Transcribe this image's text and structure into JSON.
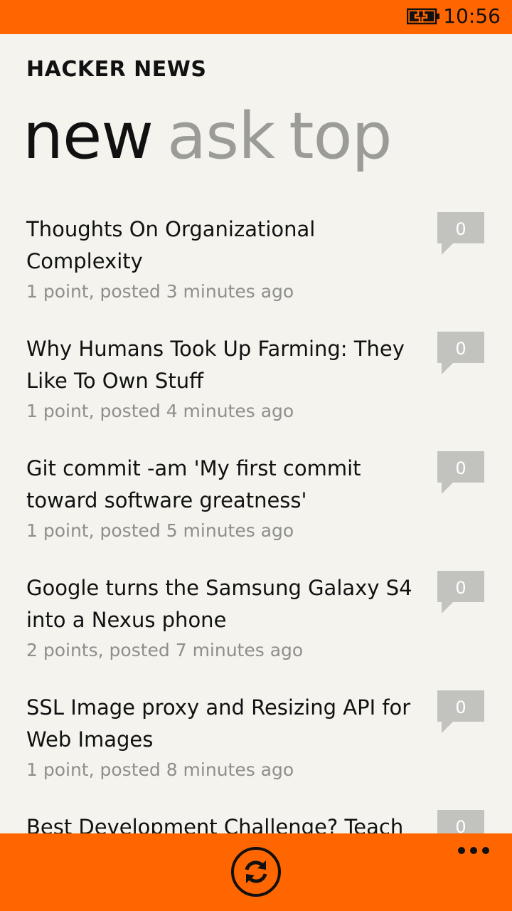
{
  "status_bar": {
    "time": "10:56",
    "battery_icon": "battery-charging-icon"
  },
  "app": {
    "title": "HACKER NEWS"
  },
  "pivot": {
    "tabs": [
      "new",
      "ask",
      "top"
    ],
    "active_tab": "new"
  },
  "stories": [
    {
      "title": "Thoughts On Organizational Complexity",
      "meta": "1 point, posted 3 minutes ago",
      "comments": "0"
    },
    {
      "title": "Why Humans Took Up Farming: They Like To Own Stuff",
      "meta": "1 point, posted 4 minutes ago",
      "comments": "0"
    },
    {
      "title": "Git commit -am 'My first commit toward software greatness'",
      "meta": "1 point, posted 5 minutes ago",
      "comments": "0"
    },
    {
      "title": "Google turns the Samsung Galaxy S4 into a Nexus phone",
      "meta": "2 points, posted 7 minutes ago",
      "comments": "0"
    },
    {
      "title": "SSL Image proxy and Resizing API for Web Images",
      "meta": "1 point, posted 8 minutes ago",
      "comments": "0"
    },
    {
      "title": "Best Development Challenge? Teach",
      "meta": "",
      "comments": "0"
    }
  ],
  "app_bar": {
    "refresh_icon": "refresh-icon",
    "more_icon": "ellipsis-icon"
  },
  "colors": {
    "accent": "#ff6600",
    "background": "#f4f3ee",
    "text_primary": "#111111",
    "text_secondary": "#8e8e8b",
    "bubble": "#c2c2bf"
  }
}
